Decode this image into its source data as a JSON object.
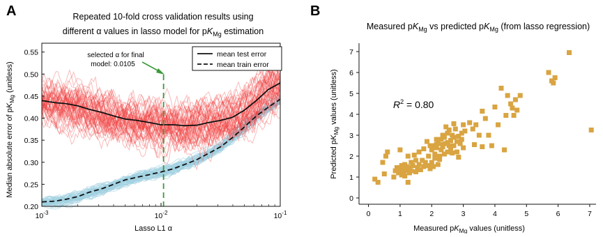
{
  "panel_a": {
    "letter": "A",
    "title_line1": "Repeated 10-fold cross validation results using",
    "title_line2_pre": "different α values in lasso model for p",
    "title_line2_k": "K",
    "title_line2_sub": "Mg",
    "title_line2_post": " estimation",
    "ylabel_pre": "Median absolute error of p",
    "ylabel_k": "K",
    "ylabel_sub": "Mg",
    "ylabel_post": " (unitless)",
    "xlabel": "Lasso L1 α",
    "annotation_line1": "selected α for final",
    "annotation_line2": "model: 0.0105",
    "legend_test": "mean test error",
    "legend_train": "mean train error"
  },
  "panel_b": {
    "letter": "B",
    "title_pre": "Measured p",
    "title_k": "K",
    "title_sub": "Mg",
    "title_mid": " vs predicted p",
    "title_k2": "K",
    "title_sub2": "Mg",
    "title_post": " (from lasso regression)",
    "ylabel_pre": "Predicted p",
    "ylabel_k": "K",
    "ylabel_sub": "Mg",
    "ylabel_post": " values (unitless)",
    "xlabel_pre": "Measured p",
    "xlabel_k": "K",
    "xlabel_sub": "Mg",
    "xlabel_post": " values (unitless)",
    "r2_r": "R",
    "r2_sup": "2",
    "r2_value": " = 0.80"
  },
  "chart_data": [
    {
      "type": "line",
      "x_scale": "log",
      "xlim": [
        0.001,
        0.1
      ],
      "ylim": [
        0.2,
        0.57
      ],
      "x_ticks": [
        0.001,
        0.01,
        0.1
      ],
      "x_tick_labels": [
        [
          "10",
          "-3"
        ],
        [
          "10",
          "-2"
        ],
        [
          "10",
          "-1"
        ]
      ],
      "y_ticks": [
        0.2,
        0.25,
        0.3,
        0.35,
        0.4,
        0.45,
        0.5,
        0.55
      ],
      "y_tick_labels": [
        "0.20",
        "0.25",
        "0.30",
        "0.35",
        "0.40",
        "0.45",
        "0.50",
        "0.55"
      ],
      "selected_alpha": 0.0105,
      "legend_position": "top-right",
      "colors": {
        "test_runs": "#f24040",
        "train_runs": "#9ecfe0",
        "mean": "#111111",
        "selected": "#3a9a3a",
        "annotation_arrow": "#3a9a3a"
      },
      "series": [
        {
          "name": "mean test error",
          "style": "solid",
          "x": [
            0.001,
            0.0013,
            0.0016,
            0.002,
            0.0025,
            0.0032,
            0.004,
            0.005,
            0.0063,
            0.008,
            0.01,
            0.0126,
            0.0158,
            0.02,
            0.025,
            0.0316,
            0.0398,
            0.05,
            0.063,
            0.0794,
            0.1
          ],
          "y": [
            0.44,
            0.435,
            0.433,
            0.428,
            0.42,
            0.413,
            0.405,
            0.398,
            0.395,
            0.39,
            0.385,
            0.385,
            0.383,
            0.384,
            0.39,
            0.395,
            0.402,
            0.418,
            0.44,
            0.465,
            0.48
          ]
        },
        {
          "name": "mean train error",
          "style": "dashed",
          "x": [
            0.001,
            0.0013,
            0.0016,
            0.002,
            0.0025,
            0.0032,
            0.004,
            0.005,
            0.0063,
            0.008,
            0.01,
            0.0126,
            0.0158,
            0.02,
            0.025,
            0.0316,
            0.0398,
            0.05,
            0.063,
            0.0794,
            0.1
          ],
          "y": [
            0.21,
            0.212,
            0.216,
            0.222,
            0.232,
            0.24,
            0.25,
            0.26,
            0.266,
            0.272,
            0.278,
            0.285,
            0.295,
            0.306,
            0.32,
            0.335,
            0.356,
            0.38,
            0.405,
            0.425,
            0.443
          ]
        }
      ]
    },
    {
      "type": "scatter",
      "xlim": [
        -0.3,
        7.2
      ],
      "ylim": [
        -0.3,
        7.4
      ],
      "x_ticks": [
        0,
        1,
        2,
        3,
        4,
        5,
        6,
        7
      ],
      "y_ticks": [
        0,
        1,
        2,
        3,
        4,
        5,
        6,
        7
      ],
      "marker_color": "#d9a441",
      "r2": 0.8,
      "points": [
        [
          0.2,
          0.9
        ],
        [
          0.3,
          0.75
        ],
        [
          0.45,
          1.7
        ],
        [
          0.5,
          1.15
        ],
        [
          0.55,
          2.0
        ],
        [
          0.6,
          2.2
        ],
        [
          0.8,
          1.0
        ],
        [
          0.85,
          1.3
        ],
        [
          0.9,
          1.45
        ],
        [
          0.95,
          1.2
        ],
        [
          1.0,
          1.35
        ],
        [
          1.0,
          2.3
        ],
        [
          1.05,
          1.1
        ],
        [
          1.05,
          1.55
        ],
        [
          1.1,
          1.25
        ],
        [
          1.1,
          1.4
        ],
        [
          1.15,
          1.6
        ],
        [
          1.15,
          1.05
        ],
        [
          1.2,
          1.3
        ],
        [
          1.2,
          1.5
        ],
        [
          1.25,
          2.0
        ],
        [
          1.3,
          1.2
        ],
        [
          1.3,
          1.45
        ],
        [
          1.35,
          1.7
        ],
        [
          1.35,
          1.3
        ],
        [
          1.4,
          1.55
        ],
        [
          1.5,
          1.25
        ],
        [
          1.5,
          1.8
        ],
        [
          1.55,
          1.45
        ],
        [
          1.6,
          1.6
        ],
        [
          1.6,
          2.2
        ],
        [
          1.65,
          1.35
        ],
        [
          1.7,
          1.8
        ],
        [
          1.75,
          1.5
        ],
        [
          1.8,
          1.7
        ],
        [
          1.85,
          2.7
        ],
        [
          1.9,
          2.0
        ],
        [
          1.95,
          1.4
        ],
        [
          2.0,
          1.7
        ],
        [
          2.0,
          2.3
        ],
        [
          2.05,
          2.5
        ],
        [
          2.1,
          1.9
        ],
        [
          2.1,
          2.1
        ],
        [
          2.15,
          2.4
        ],
        [
          2.2,
          1.6
        ],
        [
          2.2,
          2.6
        ],
        [
          2.25,
          2.0
        ],
        [
          2.3,
          2.3
        ],
        [
          2.3,
          2.8
        ],
        [
          2.35,
          2.45
        ],
        [
          2.4,
          2.1
        ],
        [
          2.4,
          2.9
        ],
        [
          2.45,
          2.6
        ],
        [
          2.5,
          2.2
        ],
        [
          2.5,
          3.1
        ],
        [
          2.55,
          2.5
        ],
        [
          2.6,
          2.75
        ],
        [
          2.6,
          2.3
        ],
        [
          2.65,
          3.0
        ],
        [
          2.7,
          2.5
        ],
        [
          2.7,
          2.9
        ],
        [
          2.75,
          3.3
        ],
        [
          2.8,
          2.7
        ],
        [
          2.8,
          2.2
        ],
        [
          2.85,
          2.95
        ],
        [
          2.9,
          2.6
        ],
        [
          2.95,
          3.1
        ],
        [
          2.95,
          2.8
        ],
        [
          3.0,
          2.4
        ],
        [
          3.0,
          3.5
        ],
        [
          3.05,
          3.2
        ],
        [
          2.45,
          3.4
        ],
        [
          2.35,
          3.0
        ],
        [
          2.15,
          2.8
        ],
        [
          1.95,
          2.5
        ],
        [
          2.05,
          1.5
        ],
        [
          1.75,
          2.35
        ],
        [
          1.45,
          2.05
        ],
        [
          1.25,
          0.75
        ],
        [
          2.25,
          1.85
        ],
        [
          2.55,
          3.25
        ],
        [
          2.65,
          2.15
        ],
        [
          2.85,
          1.95
        ],
        [
          2.5,
          2.65
        ],
        [
          2.35,
          2.55
        ],
        [
          2.7,
          3.55
        ],
        [
          2.15,
          2.55
        ],
        [
          1.9,
          1.55
        ],
        [
          3.2,
          3.6
        ],
        [
          3.3,
          3.3
        ],
        [
          3.35,
          2.55
        ],
        [
          3.4,
          3.5
        ],
        [
          3.5,
          3.0
        ],
        [
          3.6,
          2.45
        ],
        [
          3.6,
          4.15
        ],
        [
          3.7,
          3.8
        ],
        [
          3.8,
          3.0
        ],
        [
          3.9,
          2.5
        ],
        [
          4.0,
          4.35
        ],
        [
          4.1,
          3.5
        ],
        [
          4.2,
          5.25
        ],
        [
          4.3,
          2.3
        ],
        [
          4.35,
          3.95
        ],
        [
          4.4,
          4.9
        ],
        [
          4.5,
          4.5
        ],
        [
          4.55,
          4.3
        ],
        [
          4.6,
          3.95
        ],
        [
          4.65,
          4.7
        ],
        [
          4.7,
          4.2
        ],
        [
          4.8,
          4.9
        ],
        [
          5.7,
          6.0
        ],
        [
          5.8,
          5.6
        ],
        [
          5.85,
          5.5
        ],
        [
          5.9,
          5.75
        ],
        [
          6.35,
          6.95
        ],
        [
          7.05,
          3.25
        ]
      ]
    }
  ]
}
